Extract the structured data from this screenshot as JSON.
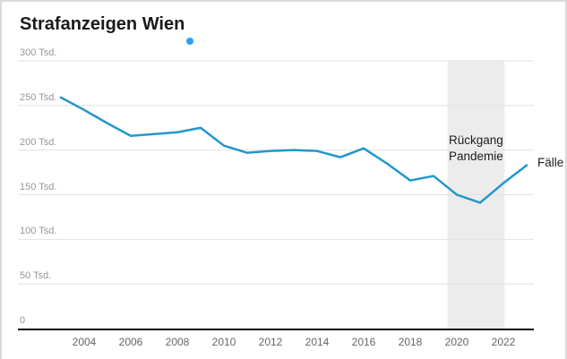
{
  "window": {
    "title": "Strafanzeigen Wien"
  },
  "chart_data": {
    "type": "line",
    "title": "Strafanzeigen Wien",
    "unit": "Tsd.",
    "x": [
      2003,
      2004,
      2005,
      2006,
      2007,
      2008,
      2009,
      2010,
      2011,
      2012,
      2013,
      2014,
      2015,
      2016,
      2017,
      2018,
      2019,
      2020,
      2021,
      2022,
      2023
    ],
    "series": [
      {
        "name": "Fälle",
        "values": [
          259,
          245,
          230,
          216,
          218,
          220,
          225,
          205,
          197,
          199,
          200,
          199,
          192,
          202,
          185,
          166,
          171,
          150,
          141,
          163,
          183
        ]
      }
    ],
    "series_end_label": "Fälle",
    "y_ticks": {
      "labels": [
        "300 Tsd.",
        "250 Tsd.",
        "200 Tsd.",
        "150 Tsd.",
        "100 Tsd.",
        "50 Tsd.",
        "0"
      ],
      "values": [
        300,
        250,
        200,
        150,
        100,
        50,
        0
      ]
    },
    "x_ticks": {
      "labels": [
        "2004",
        "2006",
        "2008",
        "2010",
        "2012",
        "2014",
        "2016",
        "2018",
        "2020",
        "2022"
      ],
      "values": [
        2004,
        2006,
        2008,
        2010,
        2012,
        2014,
        2016,
        2018,
        2020,
        2022
      ]
    },
    "ylim": [
      0,
      300
    ],
    "xlim": [
      2003,
      2023
    ],
    "grid": "horizontal",
    "legend_position": "end-of-line",
    "annotation": {
      "line1": "Rückgang",
      "line2": "Pandemie",
      "band_x_range": [
        2019.6,
        2022.05
      ]
    },
    "colors": {
      "line": "#2396cd",
      "band": "#ececec",
      "grid": "#e2e2e2",
      "axis": "#000000",
      "title_dot": "#2f9ff0"
    }
  }
}
